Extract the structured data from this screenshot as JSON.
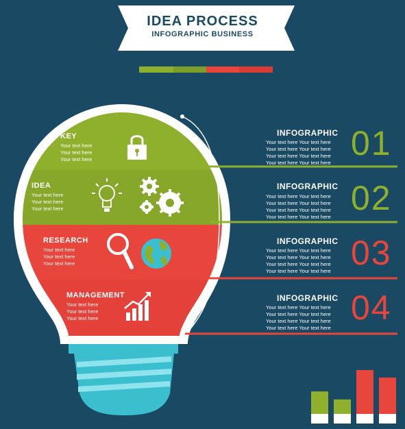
{
  "banner": {
    "title": "IDEA PROCESS",
    "subtitle": "INFOGRAPHIC BUSINESS"
  },
  "colors": {
    "background": "#1a4a63",
    "green": "#8fb02c",
    "red": "#e8463d",
    "teal": "#3bbfcf",
    "white": "#ffffff"
  },
  "bulb_sections": [
    {
      "title": "KEY",
      "lines": [
        "Your text here",
        "Your text here",
        "Your text here"
      ],
      "icon": "lock-icon"
    },
    {
      "title": "IDEA",
      "lines": [
        "Your text here",
        "Your text here",
        "Your text here"
      ],
      "icon": "lightbulb-gears-icon"
    },
    {
      "title": "RESEARCH",
      "lines": [
        "Your text here",
        "Your text here",
        "Your text here"
      ],
      "icon": "magnifier-globe-icon"
    },
    {
      "title": "MANAGEMENT",
      "lines": [
        "Your text here",
        "Your text here",
        "Your text here"
      ],
      "icon": "growth-chart-icon"
    }
  ],
  "steps": [
    {
      "title": "INFOGRAPHIC",
      "number": "01",
      "lines": [
        "Your text here Your text here",
        "Your text here Your text here",
        "Your text here Your text here",
        "Your text here Your text here"
      ]
    },
    {
      "title": "INFOGRAPHIC",
      "number": "02",
      "lines": [
        "Your text here Your text here",
        "Your text here Your text here",
        "Your text here Your text here",
        "Your text here Your text here"
      ]
    },
    {
      "title": "INFOGRAPHIC",
      "number": "03",
      "lines": [
        "Your text here Your text here",
        "Your text here Your text here",
        "Your text here Your text here",
        "Your text here Your text here"
      ]
    },
    {
      "title": "INFOGRAPHIC",
      "number": "04",
      "lines": [
        "Your text here Your text here",
        "Your text here Your text here",
        "Your text here Your text here",
        "Your text here Your text here"
      ]
    }
  ],
  "decor_bars": {
    "levels": [
      0.6,
      0.45,
      1.0,
      0.86
    ],
    "colors": [
      "#8fb02c",
      "#8fb02c",
      "#e8463d",
      "#e8463d"
    ]
  }
}
